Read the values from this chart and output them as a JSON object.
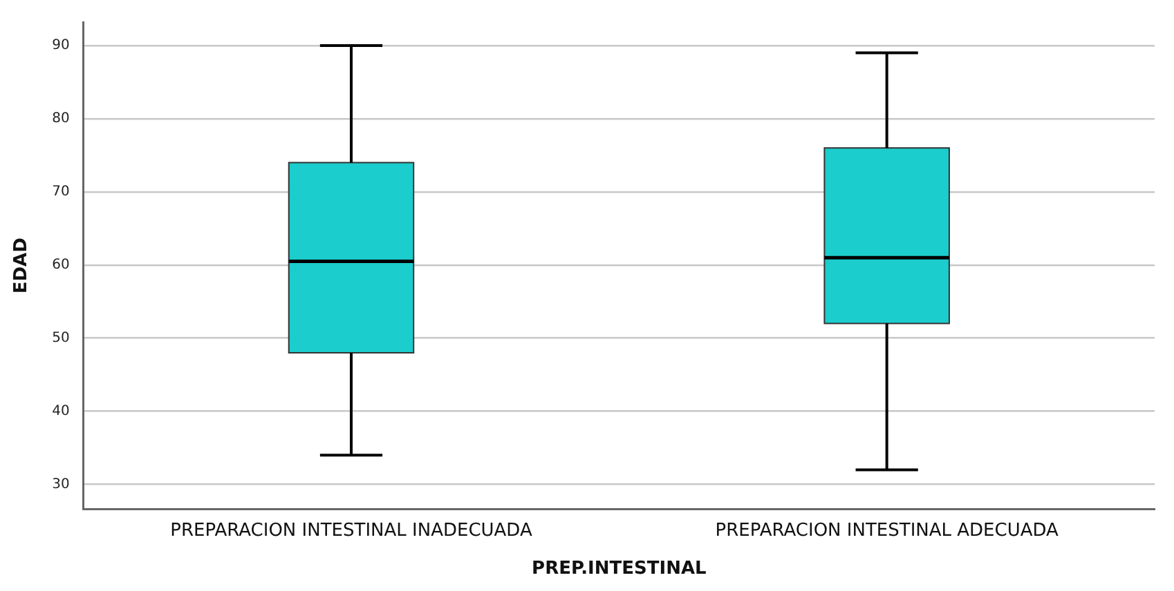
{
  "chart_data": {
    "type": "box",
    "xlabel": "PREP.INTESTINAL",
    "ylabel": "EDAD",
    "categories": [
      "PREPARACION INTESTINAL INADECUADA",
      "PREPARACION INTESTINAL ADECUADA"
    ],
    "color": "#1ccdcd",
    "boxes": [
      {
        "low": 34,
        "q1": 48,
        "median": 60.5,
        "q3": 74,
        "high": 90
      },
      {
        "low": 32,
        "q1": 52,
        "median": 61,
        "q3": 76,
        "high": 89
      }
    ],
    "ylim": [
      26.6,
      93.2
    ],
    "yticks": [
      30,
      40,
      50,
      60,
      70,
      80,
      90
    ],
    "grid": "y",
    "legend": false
  }
}
